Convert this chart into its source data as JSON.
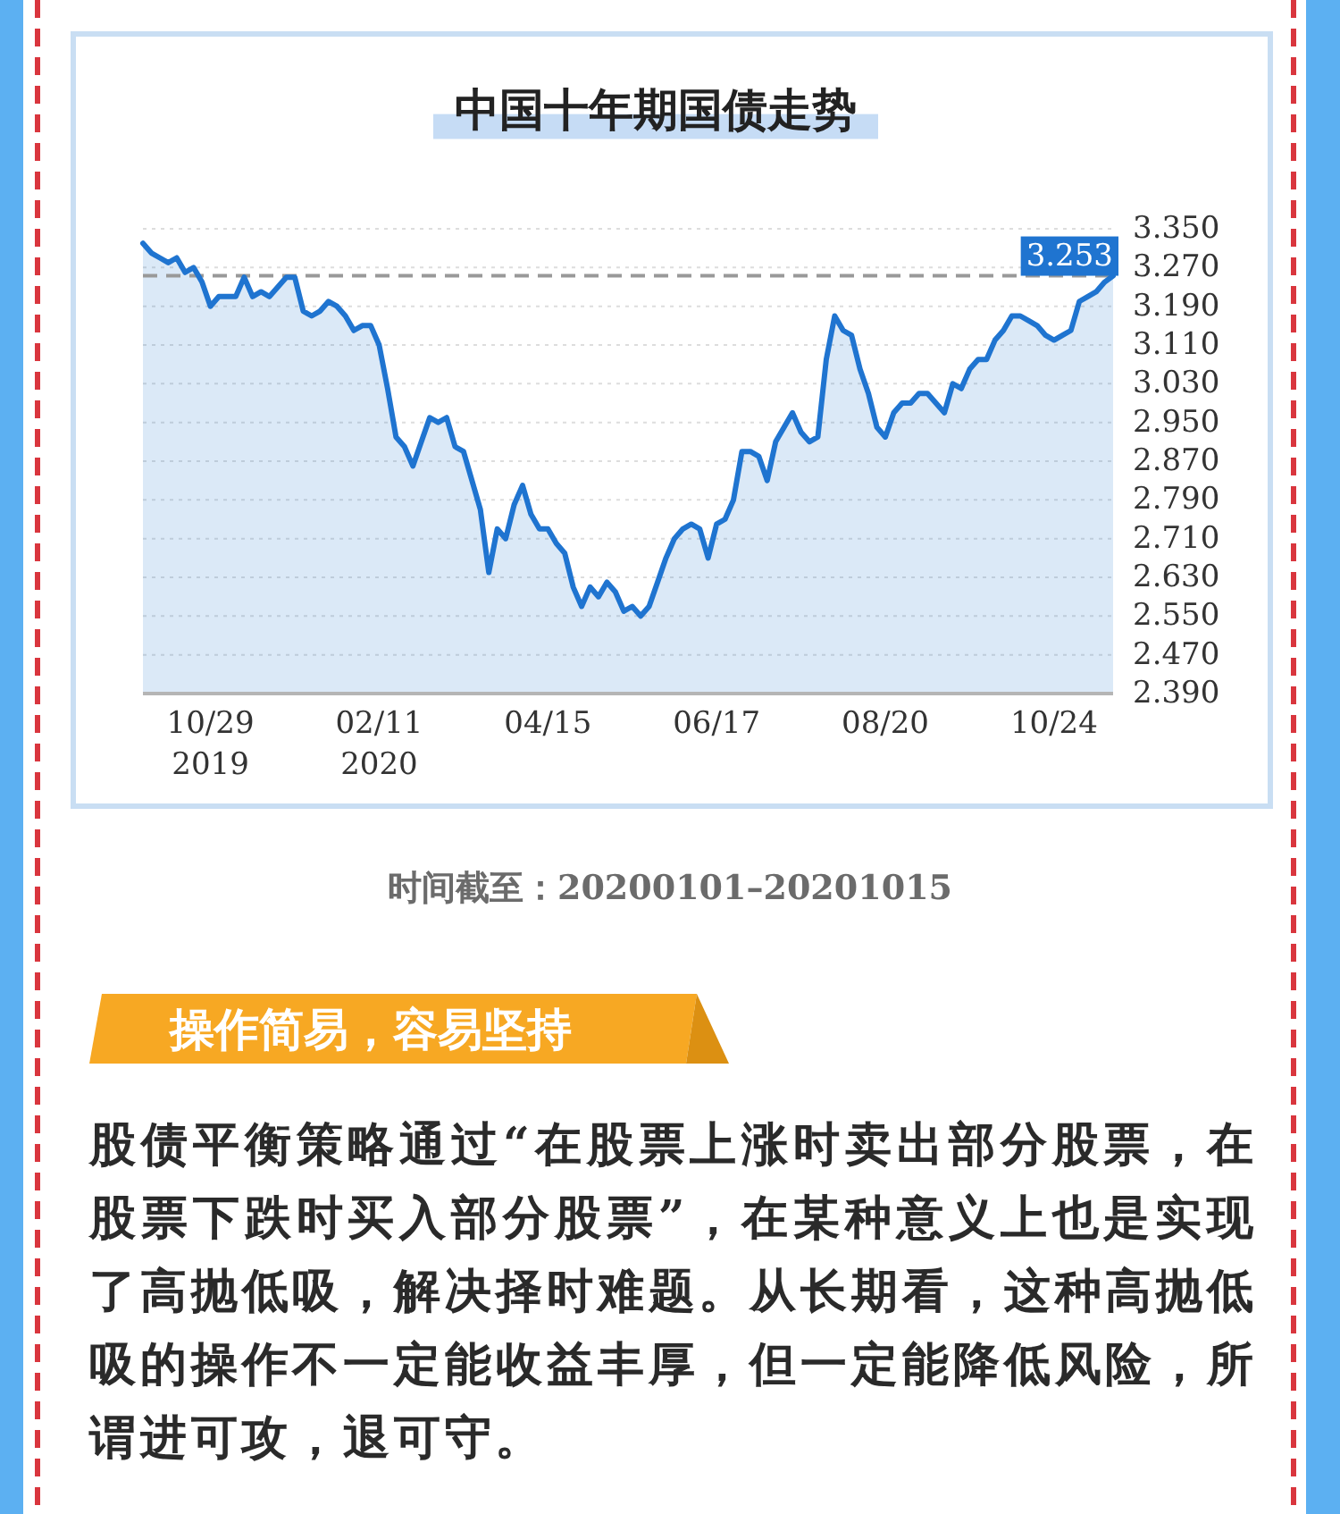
{
  "chart_data": [
    {
      "type": "area",
      "title": "中国十年期国债走势",
      "categories": [
        null,
        null,
        null,
        null,
        null,
        null,
        null,
        null,
        "10/29\n2019",
        null,
        null,
        null,
        null,
        null,
        null,
        null,
        null,
        null,
        null,
        null,
        null,
        null,
        null,
        null,
        null,
        null,
        null,
        null,
        "02/11\n2020",
        null,
        null,
        null,
        null,
        null,
        null,
        null,
        null,
        null,
        null,
        null,
        null,
        null,
        null,
        null,
        null,
        null,
        null,
        null,
        "04/15",
        null,
        null,
        null,
        null,
        null,
        null,
        null,
        null,
        null,
        null,
        null,
        null,
        null,
        null,
        null,
        null,
        null,
        null,
        null,
        "06/17",
        null,
        null,
        null,
        null,
        null,
        null,
        null,
        null,
        null,
        null,
        null,
        null,
        null,
        null,
        null,
        null,
        null,
        null,
        null,
        "08/20",
        null,
        null,
        null,
        null,
        null,
        null,
        null,
        null,
        null,
        null,
        null,
        null,
        null,
        null,
        null,
        null,
        null,
        null,
        null,
        "10/24",
        null,
        null,
        null,
        null,
        null,
        null,
        null
      ],
      "series": [
        {
          "color": "#1f74d0",
          "values": [
            3.32,
            3.3,
            3.29,
            3.28,
            3.29,
            3.26,
            3.27,
            3.24,
            3.19,
            3.21,
            3.21,
            3.21,
            3.25,
            3.21,
            3.22,
            3.21,
            3.23,
            3.25,
            3.25,
            3.18,
            3.17,
            3.18,
            3.2,
            3.19,
            3.17,
            3.14,
            3.15,
            3.15,
            3.11,
            3.02,
            2.92,
            2.9,
            2.86,
            2.91,
            2.96,
            2.95,
            2.96,
            2.9,
            2.89,
            2.83,
            2.77,
            2.64,
            2.73,
            2.71,
            2.78,
            2.82,
            2.76,
            2.73,
            2.73,
            2.7,
            2.68,
            2.61,
            2.57,
            2.61,
            2.59,
            2.62,
            2.6,
            2.56,
            2.57,
            2.55,
            2.57,
            2.62,
            2.67,
            2.71,
            2.73,
            2.74,
            2.73,
            2.67,
            2.74,
            2.75,
            2.79,
            2.89,
            2.89,
            2.88,
            2.83,
            2.91,
            2.94,
            2.97,
            2.93,
            2.91,
            2.92,
            3.08,
            3.17,
            3.14,
            3.13,
            3.06,
            3.01,
            2.94,
            2.92,
            2.97,
            2.99,
            2.99,
            3.01,
            3.01,
            2.99,
            2.97,
            3.03,
            3.02,
            3.06,
            3.08,
            3.08,
            3.12,
            3.14,
            3.17,
            3.17,
            3.16,
            3.15,
            3.13,
            3.12,
            3.13,
            3.14,
            3.2,
            3.21,
            3.22,
            3.24,
            3.253
          ]
        }
      ],
      "ylim": [
        2.39,
        3.35
      ],
      "yticks": [
        {
          "value": 3.35,
          "label": "3.350"
        },
        {
          "value": 3.27,
          "label": "3.270"
        },
        {
          "value": 3.19,
          "label": "3.190"
        },
        {
          "value": 3.11,
          "label": "3.110"
        },
        {
          "value": 3.03,
          "label": "3.030"
        },
        {
          "value": 2.95,
          "label": "2.950"
        },
        {
          "value": 2.87,
          "label": "2.870"
        },
        {
          "value": 2.79,
          "label": "2.790"
        },
        {
          "value": 2.71,
          "label": "2.710"
        },
        {
          "value": 2.63,
          "label": "2.630"
        },
        {
          "value": 2.55,
          "label": "2.550"
        },
        {
          "value": 2.47,
          "label": "2.470"
        },
        {
          "value": 2.39,
          "label": "2.390"
        }
      ],
      "grid": "y",
      "ref_lines": [
        {
          "axis": "y",
          "value": 3.253,
          "label": "3.253",
          "color": "#999999",
          "line_style": "dashed"
        }
      ],
      "annotations": [
        "时间截至：20200101–20201015"
      ]
    },
    {
      "type": "other",
      "title": "操作简易，容易坚持",
      "annotations": [
        "股债平衡策略通过“在股票上涨时卖出部分股票，在股票下跌时买入部分股票”，在某种意义上也是实现了高抛低吸，解决择时难题。从长期看，这种高抛低吸的操作不一定能收益丰厚，但一定能降低风险，所谓进可攻，退可守。"
      ]
    }
  ]
}
